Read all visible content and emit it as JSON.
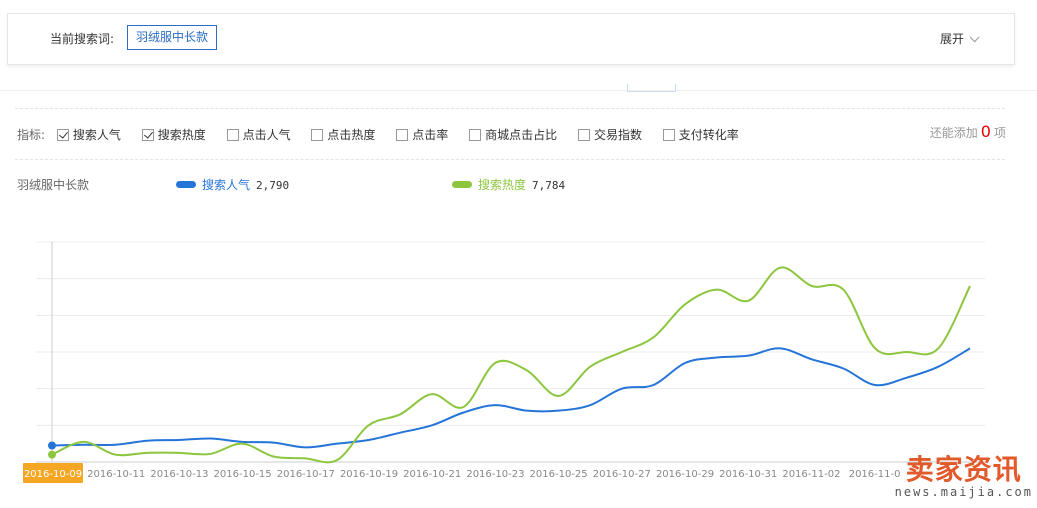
{
  "search": {
    "label": "当前搜索词:",
    "term": "羽绒服中长款",
    "expand_label": "展开"
  },
  "metrics": {
    "label": "指标:",
    "items": [
      {
        "label": "搜索人气",
        "checked": true
      },
      {
        "label": "搜索热度",
        "checked": true
      },
      {
        "label": "点击人气",
        "checked": false
      },
      {
        "label": "点击热度",
        "checked": false
      },
      {
        "label": "点击率",
        "checked": false
      },
      {
        "label": "商城点击占比",
        "checked": false
      },
      {
        "label": "交易指数",
        "checked": false
      },
      {
        "label": "支付转化率",
        "checked": false
      }
    ],
    "remaining_prefix": "还能添加",
    "remaining_count": "0",
    "remaining_suffix": "项"
  },
  "legend": {
    "title": "羽绒服中长款",
    "series": [
      {
        "name": "搜索人气",
        "value": "2,790",
        "color": "#2574d8"
      },
      {
        "name": "搜索热度",
        "value": "7,784",
        "color": "#8cc63e"
      }
    ]
  },
  "watermark": {
    "brand": "卖家资讯",
    "url": "news.maijia.com"
  },
  "chart_data": {
    "type": "line",
    "x": [
      "2016-10-09",
      "2016-10-10",
      "2016-10-11",
      "2016-10-12",
      "2016-10-13",
      "2016-10-14",
      "2016-10-15",
      "2016-10-16",
      "2016-10-17",
      "2016-10-18",
      "2016-10-19",
      "2016-10-20",
      "2016-10-21",
      "2016-10-22",
      "2016-10-23",
      "2016-10-24",
      "2016-10-25",
      "2016-10-26",
      "2016-10-27",
      "2016-10-28",
      "2016-10-29",
      "2016-10-30",
      "2016-10-31",
      "2016-11-01",
      "2016-11-02",
      "2016-11-03",
      "2016-11-04",
      "2016-11-05",
      "2016-11-06",
      "2016-11-07"
    ],
    "tick_labels": [
      "2016-10-09",
      "2016-10-11",
      "2016-10-13",
      "2016-10-15",
      "2016-10-17",
      "2016-10-19",
      "2016-10-21",
      "2016-10-23",
      "2016-10-25",
      "2016-10-27",
      "2016-10-29",
      "2016-10-31",
      "2016-11-02",
      "2016-11-0"
    ],
    "highlighted_x": "2016-10-09",
    "series": [
      {
        "name": "搜索人气",
        "color": "#2574d8",
        "values": [
          0.45,
          0.47,
          0.47,
          0.58,
          0.6,
          0.64,
          0.55,
          0.53,
          0.4,
          0.5,
          0.6,
          0.8,
          1.0,
          1.35,
          1.55,
          1.4,
          1.4,
          1.55,
          2.0,
          2.1,
          2.7,
          2.85,
          2.9,
          3.1,
          2.8,
          2.55,
          2.1,
          2.3,
          2.6,
          3.1
        ]
      },
      {
        "name": "搜索热度",
        "color": "#8cc63e",
        "values": [
          0.2,
          0.55,
          0.2,
          0.25,
          0.25,
          0.22,
          0.5,
          0.15,
          0.1,
          0.05,
          1.0,
          1.3,
          1.85,
          1.5,
          2.7,
          2.5,
          1.8,
          2.6,
          3.0,
          3.4,
          4.3,
          4.7,
          4.4,
          5.3,
          4.8,
          4.7,
          3.1,
          3.0,
          3.1,
          4.8
        ]
      }
    ],
    "ylim": [
      0,
      6
    ],
    "grid": true
  }
}
